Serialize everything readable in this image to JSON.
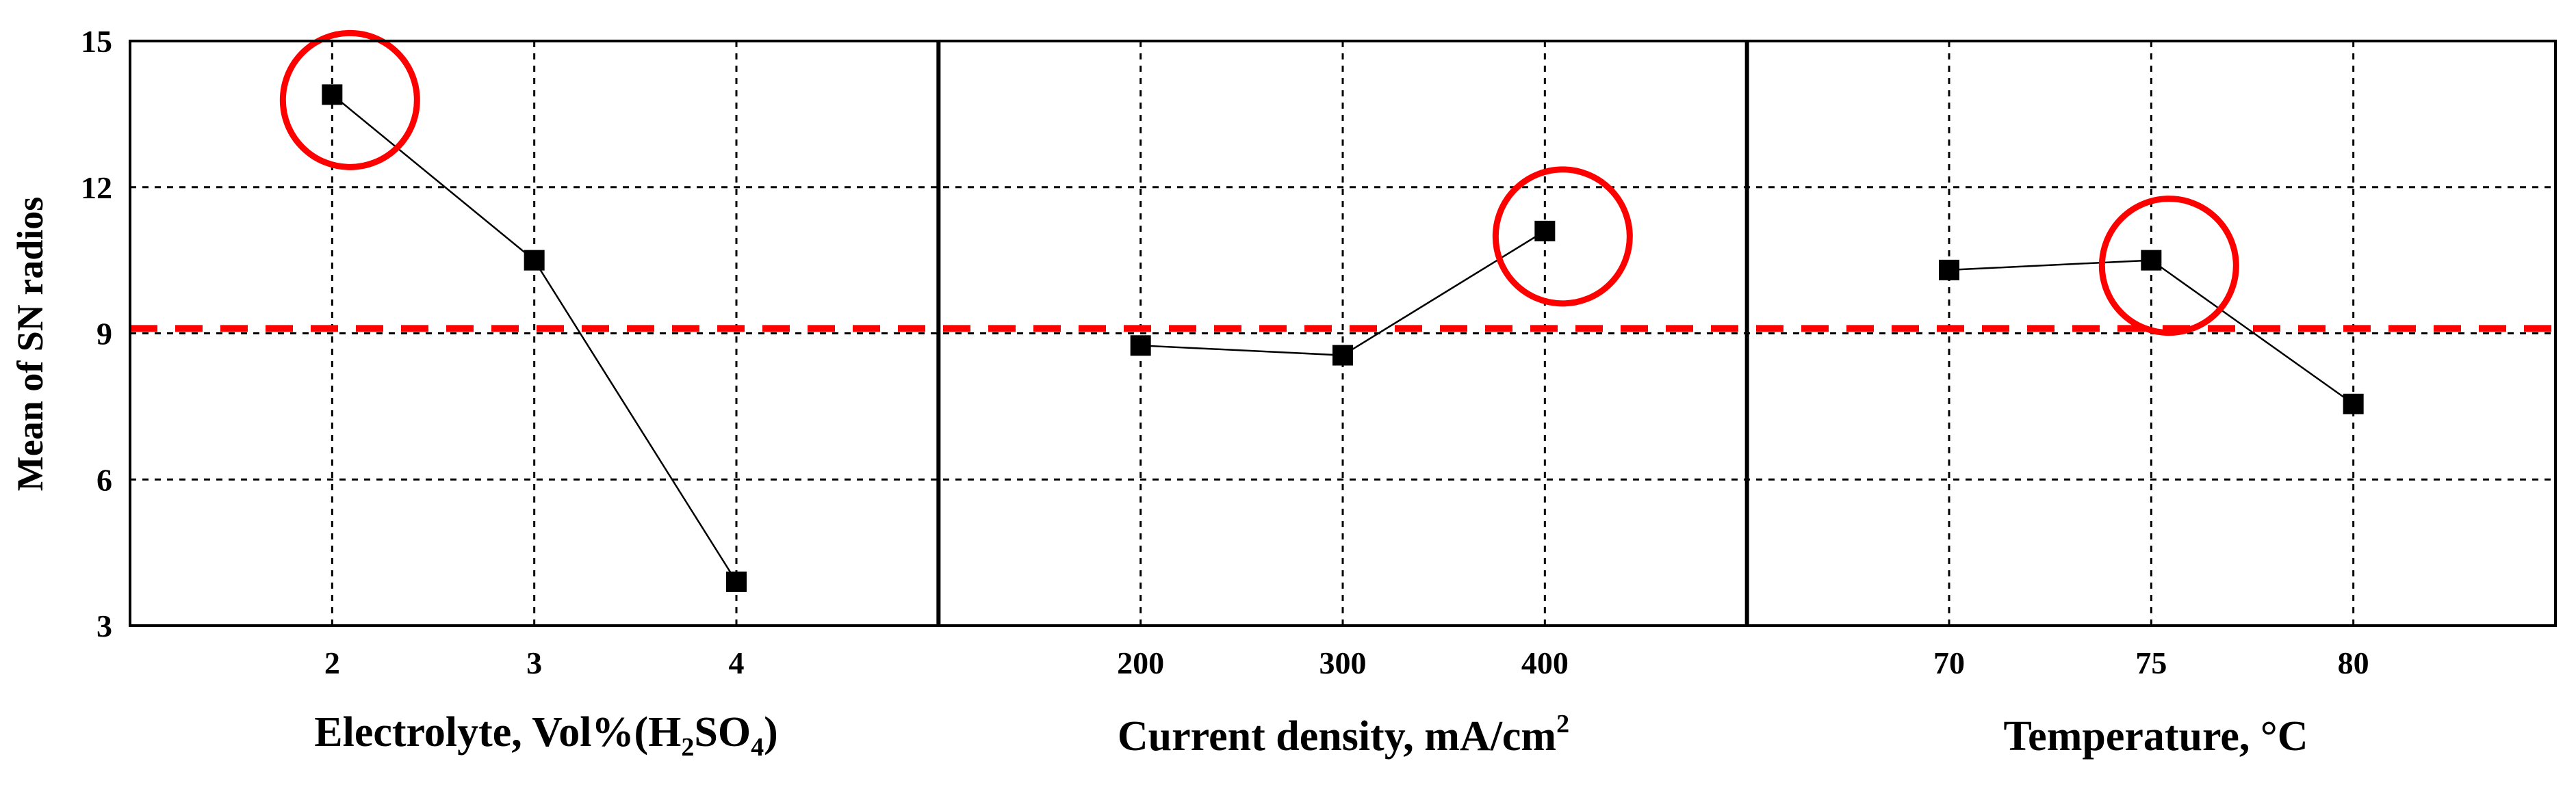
{
  "chart_data": {
    "type": "line",
    "ylabel": "Mean of SN radios",
    "ylim": [
      3,
      15
    ],
    "yticks": [
      "3",
      "6",
      "9",
      "12",
      "15"
    ],
    "grid": true,
    "reference_line": {
      "y": 9.1,
      "color": "#ff0000",
      "style": "dashed"
    },
    "highlight_color": "#ff0000",
    "marker_color": "#000000",
    "panels": [
      {
        "xlabel_main": "Electrolyte, Vol%(H",
        "xlabel_sub1": "2",
        "xlabel_mid": "SO",
        "xlabel_sub2": "4",
        "xlabel_end": ")",
        "categories": [
          "2",
          "3",
          "4"
        ],
        "values": [
          13.9,
          10.5,
          3.9
        ],
        "highlight_index": 0
      },
      {
        "xlabel_main": "Current density, mA/cm",
        "xlabel_sup": "2",
        "categories": [
          "200",
          "300",
          "400"
        ],
        "values": [
          8.75,
          8.55,
          11.1
        ],
        "highlight_index": 2
      },
      {
        "xlabel_main": "Temperature, °C",
        "categories": [
          "70",
          "75",
          "80"
        ],
        "values": [
          10.3,
          10.5,
          7.55
        ],
        "highlight_index": 1
      }
    ]
  }
}
